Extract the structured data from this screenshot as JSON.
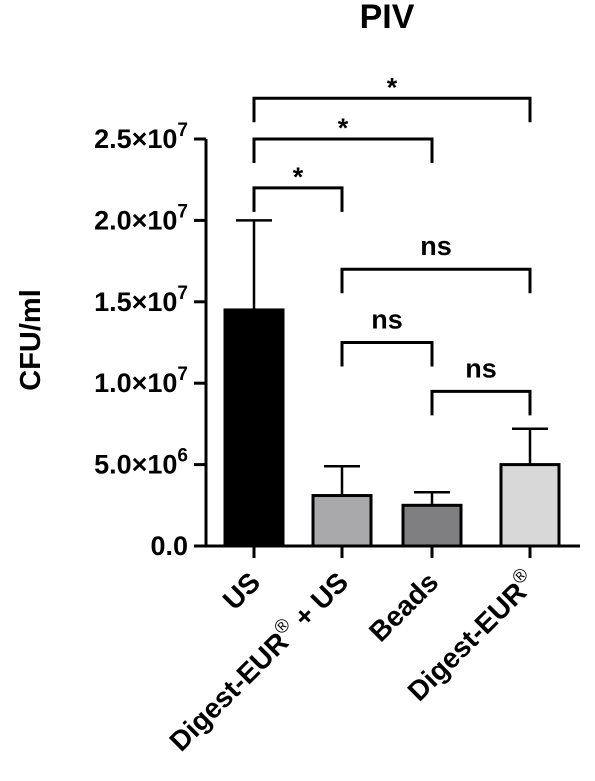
{
  "chart_data": {
    "type": "bar",
    "title": "PIV",
    "ylabel": "CFU/ml",
    "xlabel": "",
    "ylim": [
      0,
      25000000
    ],
    "y_ticks": [
      {
        "value": 0,
        "label": "0.0"
      },
      {
        "value": 5000000,
        "label": "5.0×10",
        "exp": "6"
      },
      {
        "value": 10000000,
        "label": "1.0×10",
        "exp": "7"
      },
      {
        "value": 15000000,
        "label": "1.5×10",
        "exp": "7"
      },
      {
        "value": 20000000,
        "label": "2.0×10",
        "exp": "7"
      },
      {
        "value": 25000000,
        "label": "2.5×10",
        "exp": "7"
      }
    ],
    "categories": [
      {
        "label": "US",
        "sup": ""
      },
      {
        "label": "Digest-EUR",
        "sup": "®",
        "suffix": " + US"
      },
      {
        "label": "Beads",
        "sup": ""
      },
      {
        "label": "Digest-EUR",
        "sup": "®"
      }
    ],
    "values": [
      14500000,
      3100000,
      2500000,
      5000000
    ],
    "error": [
      5500000,
      1800000,
      800000,
      2200000
    ],
    "colors": [
      "#000000",
      "#a9a9ab",
      "#7f7f81",
      "#d8d8d8"
    ],
    "comparisons": [
      {
        "from": 0,
        "to": 3,
        "label": "*",
        "y": 27500000
      },
      {
        "from": 0,
        "to": 2,
        "label": "*",
        "y": 25000000
      },
      {
        "from": 0,
        "to": 1,
        "label": "*",
        "y": 22000000
      },
      {
        "from": 1,
        "to": 3,
        "label": "ns",
        "y": 17000000
      },
      {
        "from": 1,
        "to": 2,
        "label": "ns",
        "y": 12500000
      },
      {
        "from": 2,
        "to": 3,
        "label": "ns",
        "y": 9500000
      }
    ]
  }
}
